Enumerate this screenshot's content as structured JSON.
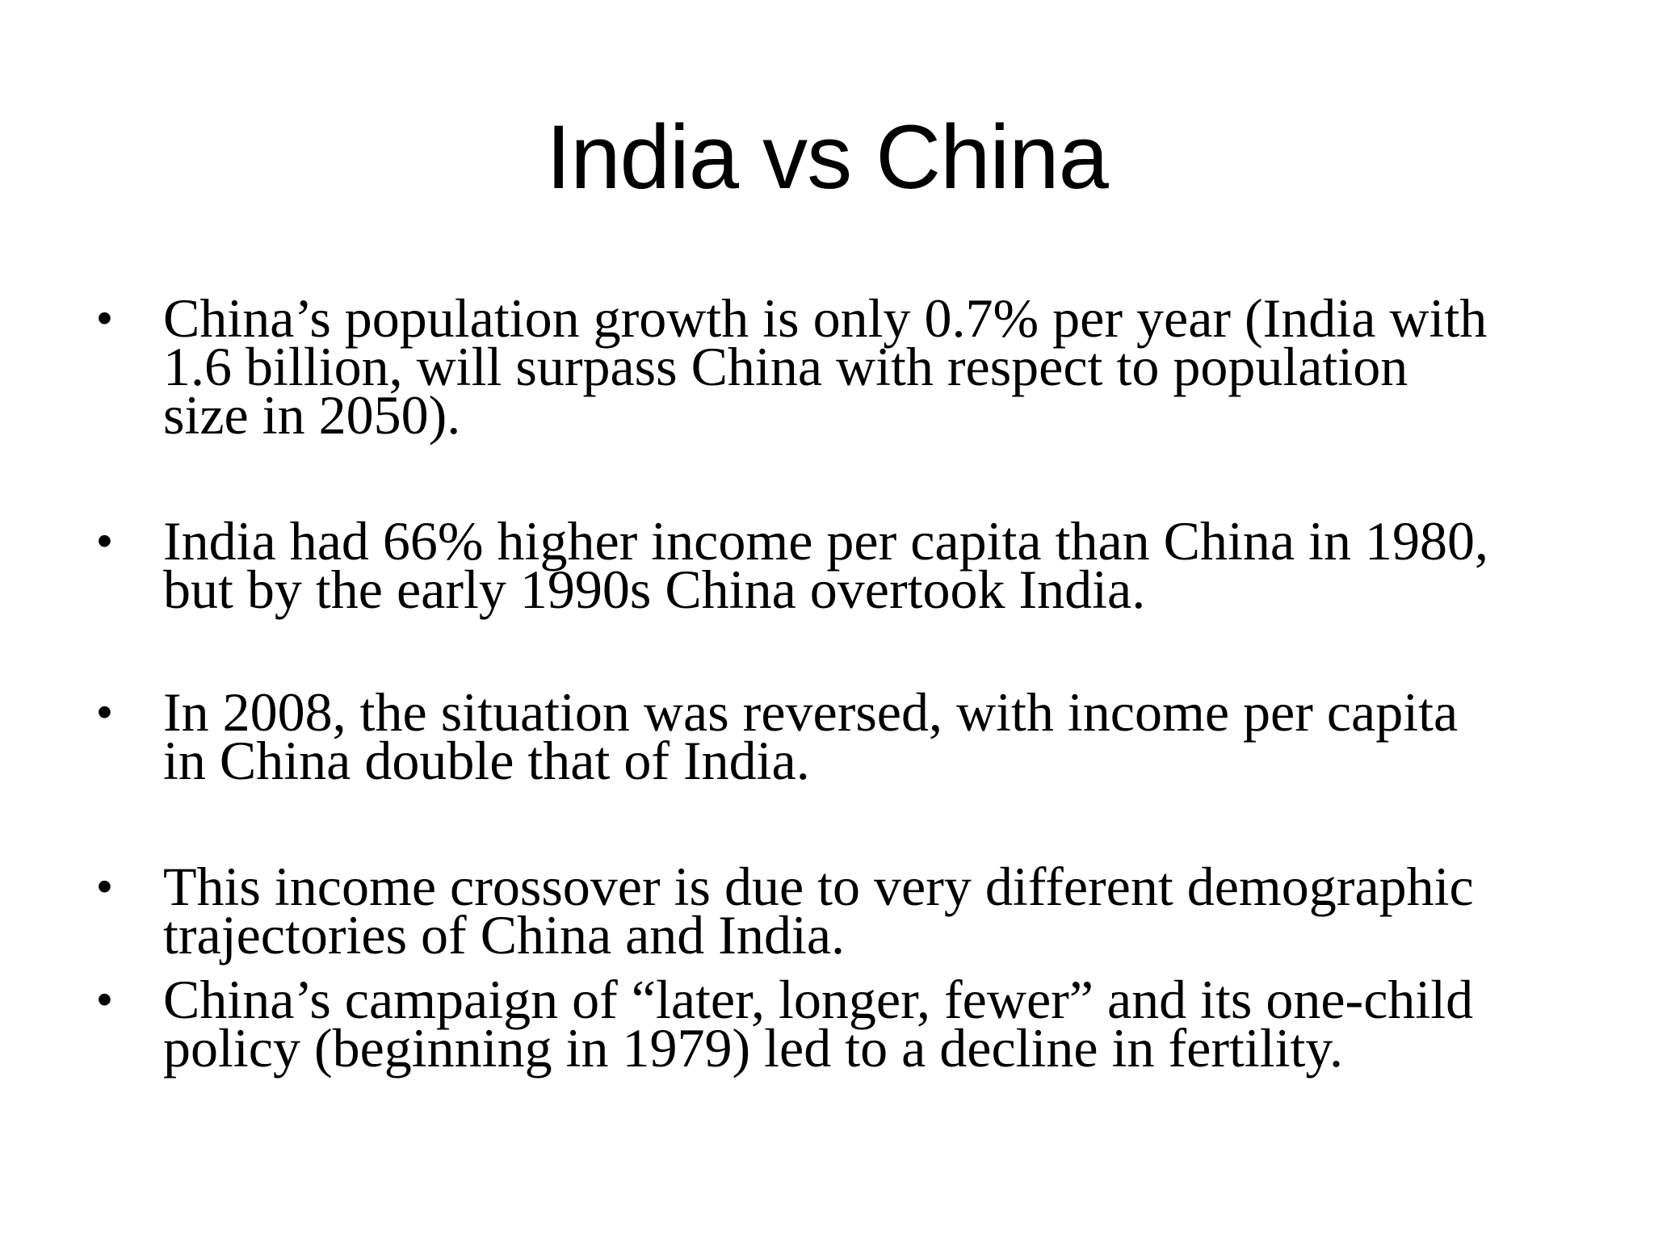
{
  "slide": {
    "title": "India vs China",
    "bullet_symbol": "•",
    "bullets": [
      {
        "text": "China’s population growth is only 0.7% per year (India with\n1.6 billion, will surpass China with respect to population\nsize in 2050)."
      },
      {
        "text": "India had 66% higher income per capita than China in 1980,\nbut by the early 1990s China overtook India."
      },
      {
        "text": "In 2008, the situation was reversed, with income per capita\nin China double that of India."
      },
      {
        "text": "This income crossover is due to very different demographic\ntrajectories of China and India."
      },
      {
        "text": "China’s campaign of “later, longer, fewer” and its one-child\npolicy (beginning in 1979) led to a decline in fertility."
      }
    ]
  }
}
